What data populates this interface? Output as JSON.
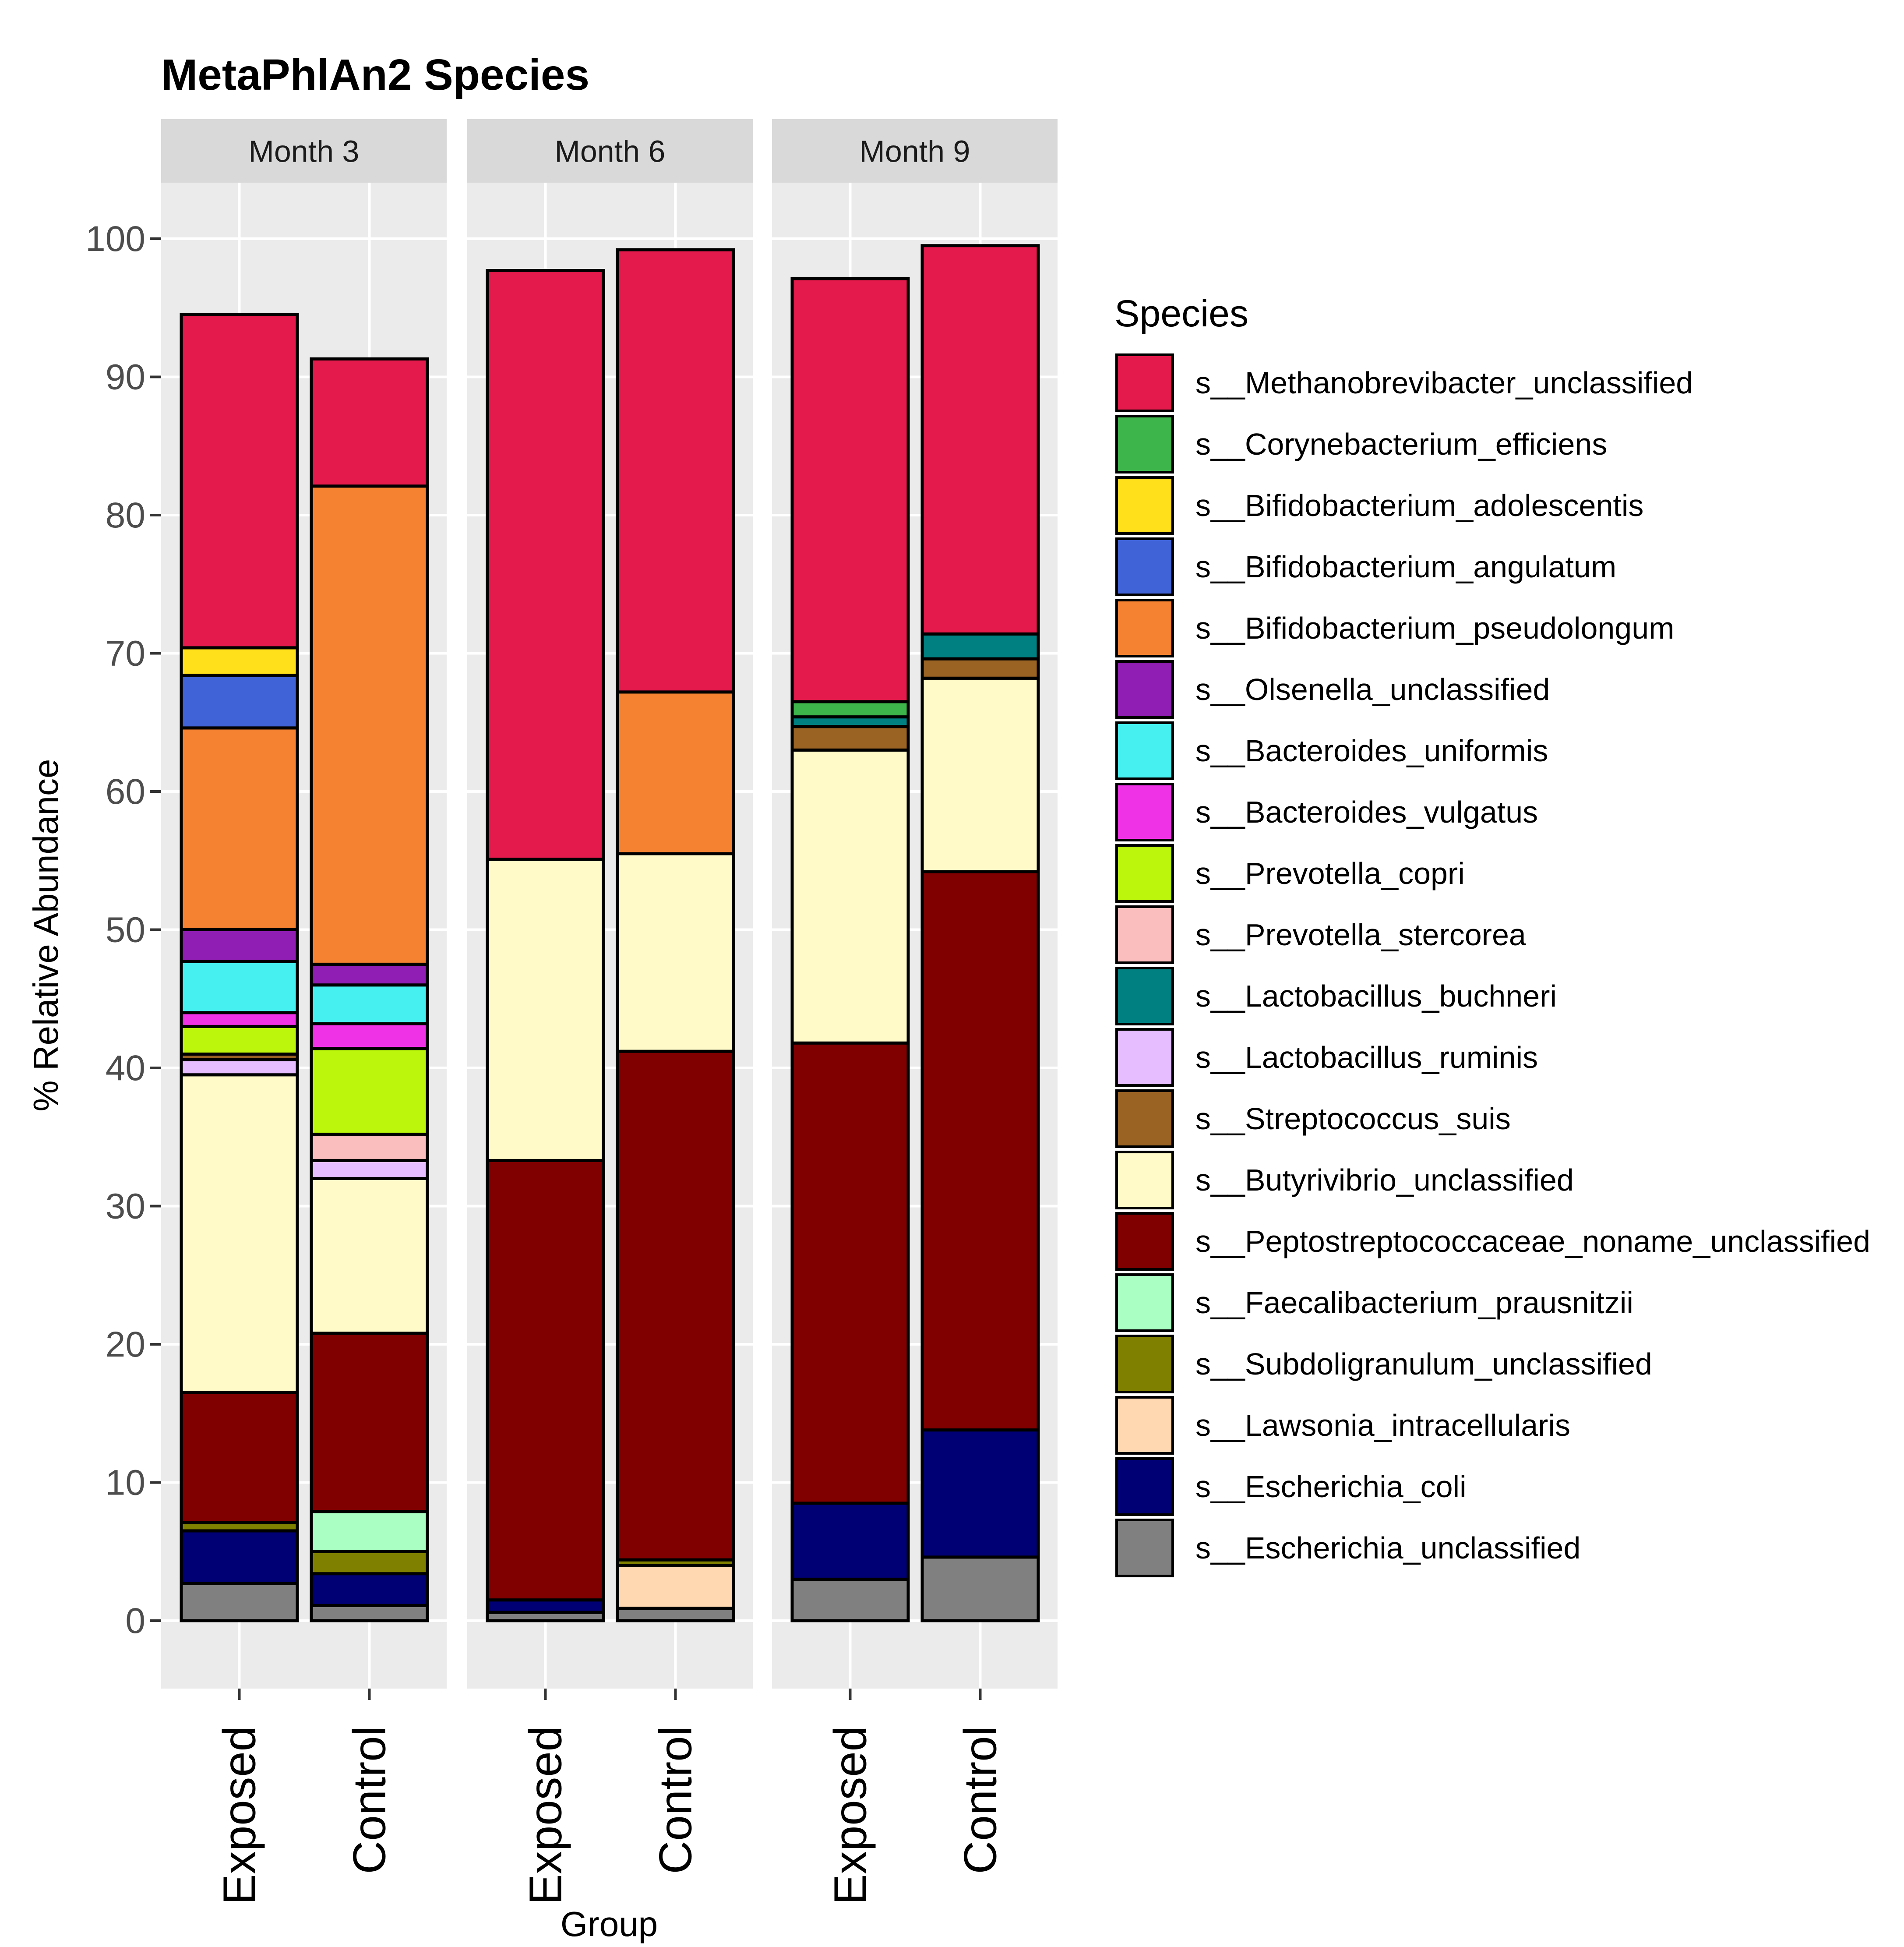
{
  "chart_data": {
    "type": "bar",
    "stacked": true,
    "title": "MetaPhlAn2 Species",
    "xlabel": "Group",
    "ylabel": "% Relative Abundance",
    "ylim": [
      -5,
      105
    ],
    "yticks": [
      0,
      10,
      20,
      30,
      40,
      50,
      60,
      70,
      80,
      90,
      100
    ],
    "facets": [
      "Month 3",
      "Month 6",
      "Month 9"
    ],
    "categories": [
      "Exposed",
      "Control"
    ],
    "legend": {
      "title": "Species",
      "position": "right",
      "entries": [
        {
          "name": "s__Methanobrevibacter_unclassified",
          "color": "#E31A4B"
        },
        {
          "name": "s__Corynebacterium_efficiens",
          "color": "#3DB54A"
        },
        {
          "name": "s__Bifidobacterium_adolescentis",
          "color": "#FFE01A"
        },
        {
          "name": "s__Bifidobacterium_angulatum",
          "color": "#4163D8"
        },
        {
          "name": "s__Bifidobacterium_pseudolongum",
          "color": "#F58231"
        },
        {
          "name": "s__Olsenella_unclassified",
          "color": "#911EB4"
        },
        {
          "name": "s__Bacteroides_uniformis",
          "color": "#46F0F0"
        },
        {
          "name": "s__Bacteroides_vulgatus",
          "color": "#F032E6"
        },
        {
          "name": "s__Prevotella_copri",
          "color": "#BCF60C"
        },
        {
          "name": "s__Prevotella_stercorea",
          "color": "#FABEBE"
        },
        {
          "name": "s__Lactobacillus_buchneri",
          "color": "#008080"
        },
        {
          "name": "s__Lactobacillus_ruminis",
          "color": "#E6BEFF"
        },
        {
          "name": "s__Streptococcus_suis",
          "color": "#9A6324"
        },
        {
          "name": "s__Butyrivibrio_unclassified",
          "color": "#FFFAC8"
        },
        {
          "name": "s__Peptostreptococcaceae_noname_unclassified",
          "color": "#800000"
        },
        {
          "name": "s__Faecalibacterium_prausnitzii",
          "color": "#AAFFC3"
        },
        {
          "name": "s__Subdoligranulum_unclassified",
          "color": "#808000"
        },
        {
          "name": "s__Lawsonia_intracellularis",
          "color": "#FFD8B1"
        },
        {
          "name": "s__Escherichia_coli",
          "color": "#000075"
        },
        {
          "name": "s__Escherichia_unclassified",
          "color": "#808080"
        }
      ]
    },
    "bars": [
      {
        "facet": "Month 3",
        "group": "Exposed",
        "segments": [
          {
            "species": "s__Escherichia_unclassified",
            "value": 2.7
          },
          {
            "species": "s__Escherichia_coli",
            "value": 3.8
          },
          {
            "species": "s__Subdoligranulum_unclassified",
            "value": 0.6
          },
          {
            "species": "s__Peptostreptococcaceae_noname_unclassified",
            "value": 9.4
          },
          {
            "species": "s__Butyrivibrio_unclassified",
            "value": 23.0
          },
          {
            "species": "s__Lactobacillus_ruminis",
            "value": 1.1
          },
          {
            "species": "s__Streptococcus_suis",
            "value": 0.4
          },
          {
            "species": "s__Prevotella_copri",
            "value": 2.0
          },
          {
            "species": "s__Bacteroides_vulgatus",
            "value": 1.0
          },
          {
            "species": "s__Bacteroides_uniformis",
            "value": 3.7
          },
          {
            "species": "s__Olsenella_unclassified",
            "value": 2.3
          },
          {
            "species": "s__Bifidobacterium_pseudolongum",
            "value": 14.6
          },
          {
            "species": "s__Bifidobacterium_angulatum",
            "value": 3.8
          },
          {
            "species": "s__Bifidobacterium_adolescentis",
            "value": 2.0
          },
          {
            "species": "s__Methanobrevibacter_unclassified",
            "value": 24.1
          }
        ]
      },
      {
        "facet": "Month 3",
        "group": "Control",
        "segments": [
          {
            "species": "s__Escherichia_unclassified",
            "value": 1.1
          },
          {
            "species": "s__Escherichia_coli",
            "value": 2.3
          },
          {
            "species": "s__Subdoligranulum_unclassified",
            "value": 1.6
          },
          {
            "species": "s__Faecalibacterium_prausnitzii",
            "value": 2.9
          },
          {
            "species": "s__Peptostreptococcaceae_noname_unclassified",
            "value": 12.9
          },
          {
            "species": "s__Butyrivibrio_unclassified",
            "value": 11.2
          },
          {
            "species": "s__Lactobacillus_ruminis",
            "value": 1.3
          },
          {
            "species": "s__Prevotella_stercorea",
            "value": 1.9
          },
          {
            "species": "s__Prevotella_copri",
            "value": 6.2
          },
          {
            "species": "s__Bacteroides_vulgatus",
            "value": 1.8
          },
          {
            "species": "s__Bacteroides_uniformis",
            "value": 2.8
          },
          {
            "species": "s__Olsenella_unclassified",
            "value": 1.5
          },
          {
            "species": "s__Bifidobacterium_pseudolongum",
            "value": 34.6
          },
          {
            "species": "s__Methanobrevibacter_unclassified",
            "value": 9.2
          }
        ]
      },
      {
        "facet": "Month 6",
        "group": "Exposed",
        "segments": [
          {
            "species": "s__Escherichia_unclassified",
            "value": 0.6
          },
          {
            "species": "s__Escherichia_coli",
            "value": 0.9
          },
          {
            "species": "s__Peptostreptococcaceae_noname_unclassified",
            "value": 31.8
          },
          {
            "species": "s__Butyrivibrio_unclassified",
            "value": 21.8
          },
          {
            "species": "s__Methanobrevibacter_unclassified",
            "value": 42.6
          }
        ]
      },
      {
        "facet": "Month 6",
        "group": "Control",
        "segments": [
          {
            "species": "s__Escherichia_unclassified",
            "value": 0.9
          },
          {
            "species": "s__Lawsonia_intracellularis",
            "value": 3.1
          },
          {
            "species": "s__Subdoligranulum_unclassified",
            "value": 0.4
          },
          {
            "species": "s__Peptostreptococcaceae_noname_unclassified",
            "value": 36.8
          },
          {
            "species": "s__Butyrivibrio_unclassified",
            "value": 14.3
          },
          {
            "species": "s__Bifidobacterium_pseudolongum",
            "value": 11.7
          },
          {
            "species": "s__Methanobrevibacter_unclassified",
            "value": 32.0
          }
        ]
      },
      {
        "facet": "Month 9",
        "group": "Exposed",
        "segments": [
          {
            "species": "s__Escherichia_unclassified",
            "value": 3.0
          },
          {
            "species": "s__Escherichia_coli",
            "value": 5.5
          },
          {
            "species": "s__Peptostreptococcaceae_noname_unclassified",
            "value": 33.3
          },
          {
            "species": "s__Butyrivibrio_unclassified",
            "value": 21.2
          },
          {
            "species": "s__Streptococcus_suis",
            "value": 1.7
          },
          {
            "species": "s__Lactobacillus_buchneri",
            "value": 0.7
          },
          {
            "species": "s__Corynebacterium_efficiens",
            "value": 1.1
          },
          {
            "species": "s__Methanobrevibacter_unclassified",
            "value": 30.6
          }
        ]
      },
      {
        "facet": "Month 9",
        "group": "Control",
        "segments": [
          {
            "species": "s__Escherichia_unclassified",
            "value": 4.6
          },
          {
            "species": "s__Escherichia_coli",
            "value": 9.2
          },
          {
            "species": "s__Peptostreptococcaceae_noname_unclassified",
            "value": 40.4
          },
          {
            "species": "s__Butyrivibrio_unclassified",
            "value": 14.0
          },
          {
            "species": "s__Streptococcus_suis",
            "value": 1.4
          },
          {
            "species": "s__Lactobacillus_buchneri",
            "value": 1.8
          },
          {
            "species": "s__Methanobrevibacter_unclassified",
            "value": 28.1
          }
        ]
      }
    ]
  }
}
